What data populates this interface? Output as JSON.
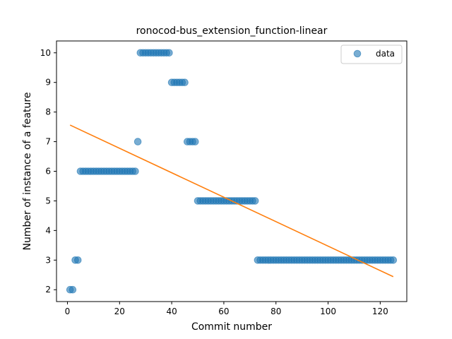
{
  "chart_data": {
    "type": "scatter",
    "title": "ronocod-bus_extension_function-linear",
    "xlabel": "Commit number",
    "ylabel": "Number of instance of a feature",
    "xlim": [
      -4.2,
      130.2
    ],
    "ylim": [
      1.6,
      10.4
    ],
    "xticks": [
      0,
      20,
      40,
      60,
      80,
      100,
      120
    ],
    "yticks": [
      2,
      3,
      4,
      5,
      6,
      7,
      8,
      9,
      10
    ],
    "grid": false,
    "legend": {
      "position": "top-right",
      "entries": [
        "data"
      ]
    },
    "colors": {
      "data": "#1f77b4",
      "fit": "#ff7f0e"
    },
    "series": [
      {
        "name": "data",
        "kind": "scatter",
        "x": [
          1,
          2,
          3,
          4,
          5,
          6,
          7,
          8,
          9,
          10,
          11,
          12,
          13,
          14,
          15,
          16,
          17,
          18,
          19,
          20,
          21,
          22,
          23,
          24,
          25,
          26,
          27,
          28,
          29,
          30,
          31,
          32,
          33,
          34,
          35,
          36,
          37,
          38,
          39,
          40,
          41,
          42,
          43,
          44,
          45,
          46,
          47,
          48,
          49,
          50,
          51,
          52,
          53,
          54,
          55,
          56,
          57,
          58,
          59,
          60,
          61,
          62,
          63,
          64,
          65,
          66,
          67,
          68,
          69,
          70,
          71,
          72,
          73,
          74,
          75,
          76,
          77,
          78,
          79,
          80,
          81,
          82,
          83,
          84,
          85,
          86,
          87,
          88,
          89,
          90,
          91,
          92,
          93,
          94,
          95,
          96,
          97,
          98,
          99,
          100,
          101,
          102,
          103,
          104,
          105,
          106,
          107,
          108,
          109,
          110,
          111,
          112,
          113,
          114,
          115,
          116,
          117,
          118,
          119,
          120,
          121,
          122,
          123,
          124,
          125
        ],
        "y": [
          2,
          2,
          3,
          3,
          6,
          6,
          6,
          6,
          6,
          6,
          6,
          6,
          6,
          6,
          6,
          6,
          6,
          6,
          6,
          6,
          6,
          6,
          6,
          6,
          6,
          6,
          7,
          10,
          10,
          10,
          10,
          10,
          10,
          10,
          10,
          10,
          10,
          10,
          10,
          9,
          9,
          9,
          9,
          9,
          9,
          7,
          7,
          7,
          7,
          5,
          5,
          5,
          5,
          5,
          5,
          5,
          5,
          5,
          5,
          5,
          5,
          5,
          5,
          5,
          5,
          5,
          5,
          5,
          5,
          5,
          5,
          5,
          3,
          3,
          3,
          3,
          3,
          3,
          3,
          3,
          3,
          3,
          3,
          3,
          3,
          3,
          3,
          3,
          3,
          3,
          3,
          3,
          3,
          3,
          3,
          3,
          3,
          3,
          3,
          3,
          3,
          3,
          3,
          3,
          3,
          3,
          3,
          3,
          3,
          3,
          3,
          3,
          3,
          3,
          3,
          3,
          3,
          3,
          3,
          3,
          3,
          3,
          3,
          3,
          3
        ]
      },
      {
        "kind": "line",
        "x": [
          1,
          125
        ],
        "y": [
          7.56,
          2.44
        ]
      }
    ]
  }
}
